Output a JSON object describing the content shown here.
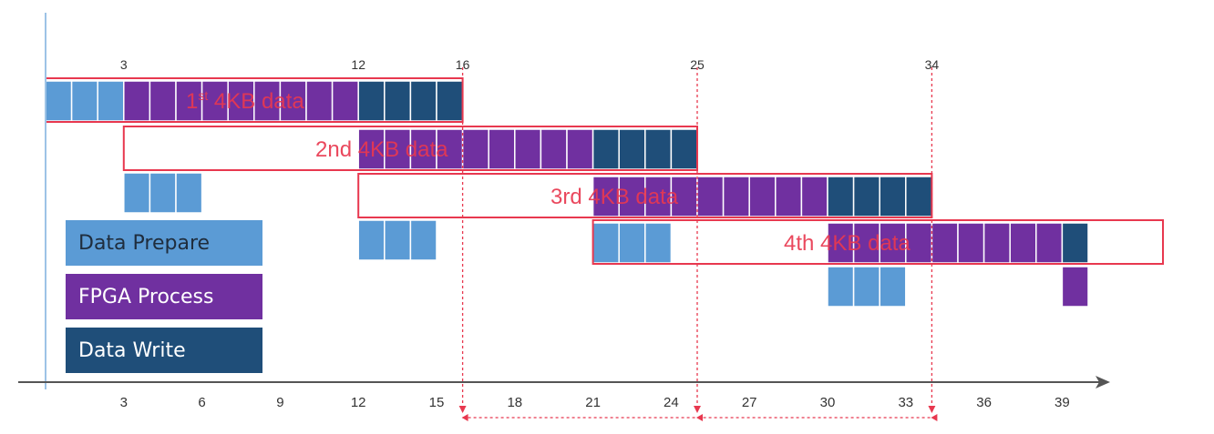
{
  "colors": {
    "prepare": "#5b9bd5",
    "process": "#7030a0",
    "write": "#1f4e79",
    "outline": "#e8384f",
    "axis": "#555555",
    "left_axis": "#9dc3e6",
    "legend_text_dark": "#1f2d3d",
    "legend_text_light": "#ffffff"
  },
  "legend": [
    {
      "key": "prepare",
      "label": "Data Prepare"
    },
    {
      "key": "process",
      "label": "FPGA Process"
    },
    {
      "key": "write",
      "label": "Data Write"
    }
  ],
  "x_ticks": [
    3,
    6,
    9,
    12,
    15,
    18,
    21,
    24,
    27,
    30,
    33,
    36,
    39
  ],
  "top_marks": [
    "3",
    "12",
    "16",
    "25",
    "34"
  ],
  "rows": [
    {
      "label_prefix": "1",
      "label_sup": "st",
      "label_rest": " 4KB data",
      "outline": [
        0,
        16
      ],
      "bars": [
        {
          "type": "prepare",
          "start": 0,
          "count": 3,
          "lane": 0
        },
        {
          "type": "process",
          "start": 3,
          "count": 9,
          "lane": 0
        },
        {
          "type": "write",
          "start": 12,
          "count": 4,
          "lane": 0
        }
      ]
    },
    {
      "label_prefix": "2nd 4KB data",
      "outline": [
        3,
        25
      ],
      "bars": [
        {
          "type": "prepare",
          "start": 3,
          "count": 3,
          "lane": 1
        },
        {
          "type": "process",
          "start": 12,
          "count": 9,
          "lane": 0
        },
        {
          "type": "write",
          "start": 21,
          "count": 4,
          "lane": 0
        }
      ]
    },
    {
      "label_prefix": "3rd 4KB data",
      "outline": [
        12,
        34
      ],
      "bars": [
        {
          "type": "prepare",
          "start": 12,
          "count": 3,
          "lane": 1
        },
        {
          "type": "process",
          "start": 21,
          "count": 9,
          "lane": 0
        },
        {
          "type": "write",
          "start": 30,
          "count": 4,
          "lane": 0
        }
      ]
    },
    {
      "label_prefix": "4th 4KB data",
      "outline": [
        21,
        43
      ],
      "bars": [
        {
          "type": "prepare",
          "start": 21,
          "count": 3,
          "lane": 0
        },
        {
          "type": "prepare",
          "start": 30,
          "count": 3,
          "lane": 1
        },
        {
          "type": "process",
          "start": 30,
          "count": 9,
          "lane": 0
        },
        {
          "type": "write",
          "start": 39,
          "count": 1,
          "lane": 0
        },
        {
          "type": "process",
          "start": 39,
          "count": 1,
          "lane": 1
        }
      ]
    }
  ],
  "dashed_markers": [
    16,
    25,
    34
  ]
}
